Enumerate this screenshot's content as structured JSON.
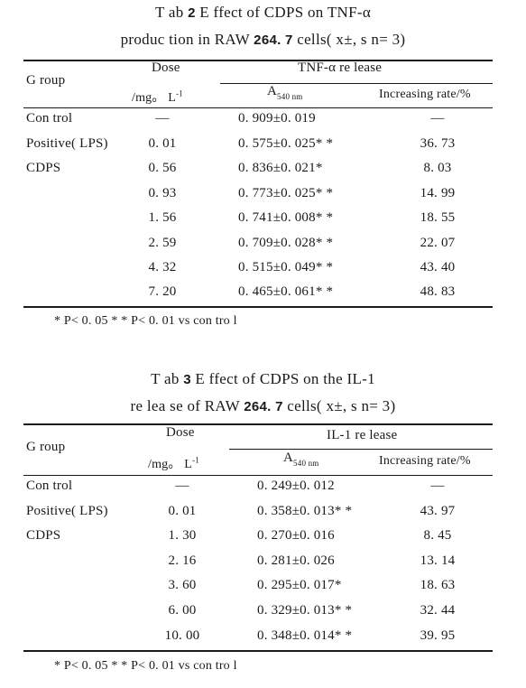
{
  "tables": [
    {
      "caption1_prefix": "T ab ",
      "caption1_num": "2",
      "caption1_rest": "  E ffect of CDPS on TNF-α",
      "caption2_pre": "produc tion  in RAW ",
      "caption2_bold": "264. 7",
      "caption2_post": "  cells( x±, s  n= 3)",
      "headers": {
        "group": "G roup",
        "dose_top": "Dose",
        "dose_unit": "/mg。 L",
        "dose_exp": "-1",
        "release": "TNF-α  re lease",
        "a_main": "A",
        "a_sub": "540  nm",
        "rate": "Increasing  rate/%"
      },
      "rows": [
        {
          "group": "Con trol",
          "dose": "—",
          "a": "0. 909±0. 019",
          "rate": "—"
        },
        {
          "group": "Positive( LPS)",
          "dose": "0. 01",
          "a": "0. 575±0. 025* *",
          "rate": "36. 73"
        },
        {
          "group": "CDPS",
          "dose": "0. 56",
          "a": "0. 836±0. 021*",
          "rate": "8. 03"
        },
        {
          "group": "",
          "dose": "0. 93",
          "a": "0. 773±0. 025* *",
          "rate": "14. 99"
        },
        {
          "group": "",
          "dose": "1. 56",
          "a": "0. 741±0. 008* *",
          "rate": "18. 55"
        },
        {
          "group": "",
          "dose": "2. 59",
          "a": "0. 709±0. 028* *",
          "rate": "22. 07"
        },
        {
          "group": "",
          "dose": "4. 32",
          "a": "0. 515±0. 049* *",
          "rate": "43. 40"
        },
        {
          "group": "",
          "dose": "7. 20",
          "a": "0. 465±0. 061* *",
          "rate": "48. 83"
        }
      ],
      "footnote": "*  P< 0. 05  * *  P< 0. 01   vs  con tro l"
    },
    {
      "caption1_prefix": "T ab ",
      "caption1_num": "3",
      "caption1_rest": "  E ffect of CDPS  on  the  IL-1",
      "caption2_pre": "re lea se  of RAW ",
      "caption2_bold": "264. 7",
      "caption2_post": "  cells( x±, s  n= 3)",
      "headers": {
        "group": "G roup",
        "dose_top": "Dose",
        "dose_unit": "/mg。 L",
        "dose_exp": "-1",
        "release": "IL-1  re lease",
        "a_main": "A",
        "a_sub": "540  nm",
        "rate": "Increasing  rate/%"
      },
      "rows": [
        {
          "group": "Con trol",
          "dose": "—",
          "a": "0. 249±0. 012",
          "rate": "—"
        },
        {
          "group": "Positive( LPS)",
          "dose": "0. 01",
          "a": "0. 358±0. 013* *",
          "rate": "43. 97"
        },
        {
          "group": "CDPS",
          "dose": "1. 30",
          "a": "0. 270±0. 016",
          "rate": "8. 45"
        },
        {
          "group": "",
          "dose": "2. 16",
          "a": "0. 281±0. 026",
          "rate": "13. 14"
        },
        {
          "group": "",
          "dose": "3. 60",
          "a": "0. 295±0. 017*",
          "rate": "18. 63"
        },
        {
          "group": "",
          "dose": "6. 00",
          "a": "0. 329±0. 013* *",
          "rate": "32. 44"
        },
        {
          "group": "",
          "dose": "10. 00",
          "a": "0. 348±0. 014* *",
          "rate": "39. 95"
        }
      ],
      "footnote": "*  P< 0. 05  * *  P< 0. 01   vs  con tro l"
    }
  ]
}
